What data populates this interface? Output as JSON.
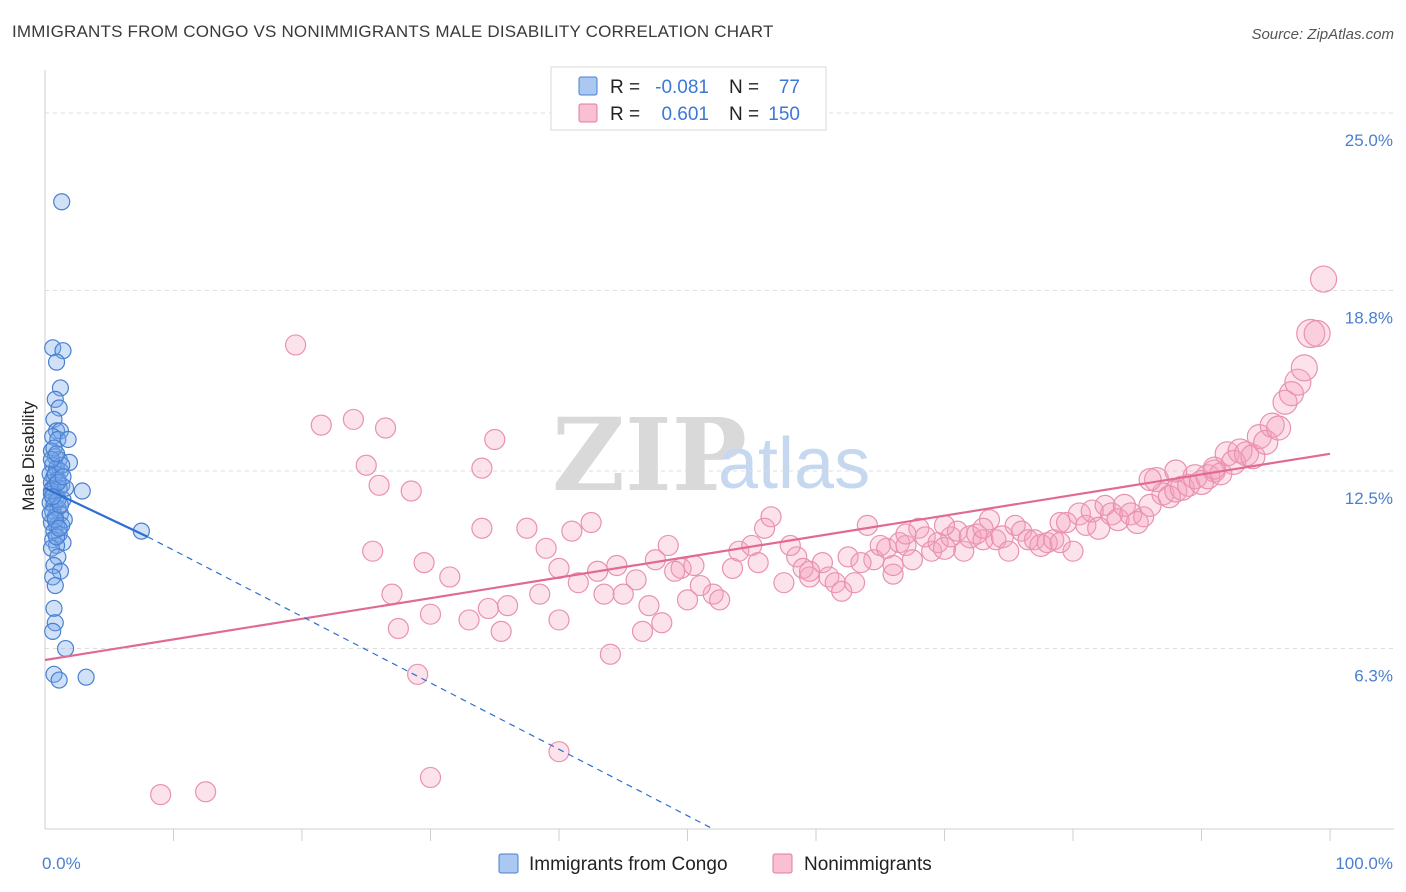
{
  "title": "IMMIGRANTS FROM CONGO VS NONIMMIGRANTS MALE DISABILITY CORRELATION CHART",
  "source": "Source: ZipAtlas.com",
  "watermark": {
    "zip": "ZIP",
    "atlas": "atlas"
  },
  "legend": {
    "r_label": "R =",
    "n_label": "N =",
    "rows": [
      {
        "r": "-0.081",
        "n": "77",
        "fill": "#aac8f0",
        "stroke": "#4a80d0"
      },
      {
        "r": "0.601",
        "n": "150",
        "fill": "#f8c0d2",
        "stroke": "#e07aa0"
      }
    ]
  },
  "bottom_legend": [
    "Immigrants from Congo",
    "Nonimmigrants"
  ],
  "colors": {
    "blue_fill": "rgba(120,170,235,0.35)",
    "blue_stroke": "#4a80d0",
    "blue_line": "#2f6fcf",
    "pink_fill": "rgba(245,160,190,0.30)",
    "pink_stroke": "#e892b0",
    "pink_line": "#e06a94",
    "grid": "#dcdcdc",
    "axis_text": "#4a7fd0"
  },
  "chart_data": {
    "type": "scatter",
    "title": "IMMIGRANTS FROM CONGO VS NONIMMIGRANTS MALE DISABILITY CORRELATION CHART",
    "xlabel": "",
    "ylabel": "Male Disability",
    "xlim": [
      0,
      100
    ],
    "ylim": [
      0,
      26.5
    ],
    "x_tick_labels": [
      {
        "value": 0,
        "label": "0.0%"
      },
      {
        "value": 100,
        "label": "100.0%"
      }
    ],
    "y_tick_labels": [
      {
        "value": 6.3,
        "label": "6.3%"
      },
      {
        "value": 12.5,
        "label": "12.5%"
      },
      {
        "value": 18.8,
        "label": "18.8%"
      },
      {
        "value": 25.0,
        "label": "25.0%"
      }
    ],
    "series": [
      {
        "name": "Immigrants from Congo",
        "r": -0.081,
        "n": 77,
        "trend": {
          "x0": 0,
          "y0": 11.9,
          "x1": 8,
          "y1": 10.2,
          "dash_x1": 52,
          "dash_y1": 0
        },
        "points": [
          [
            1.3,
            21.9,
            9
          ],
          [
            0.6,
            16.8,
            9
          ],
          [
            1.4,
            16.7,
            9
          ],
          [
            0.9,
            16.3,
            9
          ],
          [
            1.2,
            15.4,
            9
          ],
          [
            0.8,
            15.0,
            9
          ],
          [
            1.1,
            14.7,
            9
          ],
          [
            0.7,
            14.3,
            9
          ],
          [
            0.9,
            13.9,
            9
          ],
          [
            1.2,
            13.9,
            9
          ],
          [
            0.6,
            13.7,
            9
          ],
          [
            1.0,
            13.6,
            9
          ],
          [
            1.8,
            13.6,
            9
          ],
          [
            0.5,
            13.2,
            9
          ],
          [
            0.8,
            13.0,
            9
          ],
          [
            1.1,
            12.9,
            9
          ],
          [
            1.9,
            12.8,
            9
          ],
          [
            0.6,
            12.7,
            9
          ],
          [
            0.9,
            12.6,
            9
          ],
          [
            1.2,
            12.5,
            9
          ],
          [
            0.4,
            12.4,
            9
          ],
          [
            0.7,
            12.3,
            9
          ],
          [
            1.0,
            12.2,
            9
          ],
          [
            0.5,
            12.1,
            9
          ],
          [
            0.8,
            12.0,
            9
          ],
          [
            1.3,
            12.0,
            9
          ],
          [
            0.6,
            11.9,
            9
          ],
          [
            1.1,
            11.9,
            9
          ],
          [
            2.9,
            11.8,
            9
          ],
          [
            0.5,
            11.7,
            9
          ],
          [
            0.9,
            11.6,
            9
          ],
          [
            1.4,
            11.5,
            9
          ],
          [
            0.4,
            11.4,
            9
          ],
          [
            0.7,
            11.3,
            9
          ],
          [
            1.0,
            11.2,
            9
          ],
          [
            0.6,
            11.1,
            9
          ],
          [
            1.2,
            11.0,
            9
          ],
          [
            0.8,
            10.9,
            9
          ],
          [
            1.5,
            10.8,
            9
          ],
          [
            0.5,
            10.7,
            9
          ],
          [
            0.9,
            10.6,
            9
          ],
          [
            1.3,
            10.6,
            9
          ],
          [
            7.5,
            10.4,
            9
          ],
          [
            0.7,
            10.4,
            9
          ],
          [
            1.1,
            10.3,
            9
          ],
          [
            0.6,
            10.1,
            9
          ],
          [
            1.4,
            10.0,
            9
          ],
          [
            0.9,
            9.9,
            9
          ],
          [
            0.5,
            9.8,
            9
          ],
          [
            1.0,
            9.5,
            9
          ],
          [
            0.7,
            9.2,
            9
          ],
          [
            1.2,
            9.0,
            9
          ],
          [
            0.6,
            8.8,
            9
          ],
          [
            0.8,
            8.5,
            9
          ],
          [
            0.7,
            7.7,
            9
          ],
          [
            0.8,
            7.2,
            9
          ],
          [
            0.6,
            6.9,
            9
          ],
          [
            1.6,
            6.3,
            9
          ],
          [
            0.7,
            5.4,
            9
          ],
          [
            1.1,
            5.2,
            9
          ],
          [
            3.2,
            5.3,
            9
          ],
          [
            0.5,
            11.8,
            9
          ],
          [
            0.8,
            12.4,
            9
          ],
          [
            1.0,
            11.5,
            9
          ],
          [
            1.6,
            11.9,
            9
          ],
          [
            0.4,
            11.0,
            9
          ],
          [
            0.9,
            10.2,
            9
          ],
          [
            1.3,
            12.7,
            9
          ],
          [
            0.7,
            13.3,
            9
          ],
          [
            1.0,
            12.1,
            9
          ],
          [
            0.5,
            12.9,
            9
          ],
          [
            1.2,
            11.3,
            9
          ],
          [
            0.8,
            10.8,
            9
          ],
          [
            0.6,
            11.6,
            9
          ],
          [
            1.4,
            12.3,
            9
          ],
          [
            0.9,
            13.1,
            9
          ],
          [
            1.1,
            10.5,
            9
          ]
        ]
      },
      {
        "name": "Nonimmigrants",
        "r": 0.601,
        "n": 150,
        "trend": {
          "x0": 0,
          "y0": 5.9,
          "x1": 100,
          "y1": 13.1
        },
        "points": [
          [
            9.0,
            1.2,
            10
          ],
          [
            12.5,
            1.3,
            10
          ],
          [
            30.0,
            1.8,
            10
          ],
          [
            40.0,
            2.7,
            10
          ],
          [
            29.0,
            5.4,
            10
          ],
          [
            19.5,
            16.9,
            10
          ],
          [
            21.5,
            14.1,
            10
          ],
          [
            24.0,
            14.3,
            10
          ],
          [
            26.5,
            14.0,
            10
          ],
          [
            25.0,
            12.7,
            10
          ],
          [
            26.0,
            12.0,
            10
          ],
          [
            28.5,
            11.8,
            10
          ],
          [
            35.0,
            13.6,
            10
          ],
          [
            34.0,
            12.6,
            10
          ],
          [
            25.5,
            9.7,
            10
          ],
          [
            27.0,
            8.2,
            10
          ],
          [
            29.5,
            9.3,
            10
          ],
          [
            31.5,
            8.8,
            10
          ],
          [
            30.0,
            7.5,
            10
          ],
          [
            27.5,
            7.0,
            10
          ],
          [
            33.0,
            7.3,
            10
          ],
          [
            34.5,
            7.7,
            10
          ],
          [
            36.0,
            7.8,
            10
          ],
          [
            35.5,
            6.9,
            10
          ],
          [
            34.0,
            10.5,
            10
          ],
          [
            37.5,
            10.5,
            10
          ],
          [
            39.0,
            9.8,
            10
          ],
          [
            41.0,
            10.4,
            10
          ],
          [
            42.5,
            10.7,
            10
          ],
          [
            40.0,
            9.1,
            10
          ],
          [
            41.5,
            8.6,
            10
          ],
          [
            43.0,
            9.0,
            10
          ],
          [
            44.5,
            9.2,
            10
          ],
          [
            46.0,
            8.7,
            10
          ],
          [
            43.5,
            8.2,
            10
          ],
          [
            45.0,
            8.2,
            10
          ],
          [
            47.0,
            7.8,
            10
          ],
          [
            46.5,
            6.9,
            10
          ],
          [
            48.0,
            7.2,
            10
          ],
          [
            40.0,
            7.3,
            10
          ],
          [
            44.0,
            6.1,
            10
          ],
          [
            38.5,
            8.2,
            10
          ],
          [
            48.5,
            9.9,
            10
          ],
          [
            49.5,
            9.1,
            10
          ],
          [
            50.5,
            9.2,
            10
          ],
          [
            52.0,
            8.2,
            10
          ],
          [
            52.5,
            8.0,
            10
          ],
          [
            53.5,
            9.1,
            10
          ],
          [
            54.0,
            9.7,
            10
          ],
          [
            55.0,
            9.9,
            10
          ],
          [
            56.0,
            10.5,
            10
          ],
          [
            56.5,
            10.9,
            10
          ],
          [
            57.5,
            8.6,
            10
          ],
          [
            58.5,
            9.5,
            10
          ],
          [
            59.0,
            9.1,
            10
          ],
          [
            59.5,
            8.8,
            10
          ],
          [
            60.5,
            9.3,
            10
          ],
          [
            61.0,
            8.8,
            10
          ],
          [
            61.5,
            8.6,
            10
          ],
          [
            62.0,
            8.3,
            10
          ],
          [
            62.5,
            9.5,
            10
          ],
          [
            63.0,
            8.6,
            10
          ],
          [
            64.0,
            10.6,
            10
          ],
          [
            64.5,
            9.4,
            10
          ],
          [
            65.0,
            9.9,
            10
          ],
          [
            65.5,
            9.8,
            10
          ],
          [
            66.0,
            8.9,
            10
          ],
          [
            66.5,
            10.0,
            10
          ],
          [
            67.0,
            9.9,
            10
          ],
          [
            67.5,
            9.4,
            10
          ],
          [
            68.0,
            10.5,
            10
          ],
          [
            68.5,
            10.2,
            10
          ],
          [
            69.0,
            9.7,
            10
          ],
          [
            69.5,
            10.0,
            10
          ],
          [
            70.0,
            9.8,
            11
          ],
          [
            70.5,
            10.2,
            10
          ],
          [
            71.0,
            10.4,
            10
          ],
          [
            71.5,
            9.7,
            10
          ],
          [
            72.0,
            10.2,
            11
          ],
          [
            72.5,
            10.3,
            10
          ],
          [
            73.0,
            10.1,
            10
          ],
          [
            73.5,
            10.8,
            10
          ],
          [
            74.0,
            10.1,
            10
          ],
          [
            74.5,
            10.2,
            11
          ],
          [
            75.0,
            9.7,
            10
          ],
          [
            75.5,
            10.6,
            10
          ],
          [
            76.0,
            10.4,
            10
          ],
          [
            76.5,
            10.1,
            10
          ],
          [
            77.0,
            10.1,
            10
          ],
          [
            77.5,
            9.9,
            11
          ],
          [
            78.0,
            10.0,
            10
          ],
          [
            78.5,
            10.1,
            10
          ],
          [
            79.0,
            10.7,
            10
          ],
          [
            79.5,
            10.7,
            10
          ],
          [
            80.0,
            9.7,
            10
          ],
          [
            80.5,
            11.0,
            11
          ],
          [
            81.0,
            10.6,
            10
          ],
          [
            81.5,
            11.1,
            11
          ],
          [
            82.0,
            10.5,
            11
          ],
          [
            82.5,
            11.3,
            10
          ],
          [
            83.0,
            11.0,
            11
          ],
          [
            83.5,
            10.8,
            11
          ],
          [
            84.0,
            11.3,
            11
          ],
          [
            84.5,
            11.0,
            11
          ],
          [
            85.0,
            10.7,
            11
          ],
          [
            85.5,
            10.9,
            10
          ],
          [
            86.0,
            11.3,
            11
          ],
          [
            86.5,
            12.2,
            12
          ],
          [
            87.0,
            11.7,
            11
          ],
          [
            87.5,
            11.6,
            11
          ],
          [
            88.0,
            11.8,
            11
          ],
          [
            88.5,
            11.9,
            12
          ],
          [
            89.0,
            12.0,
            11
          ],
          [
            89.5,
            12.3,
            12
          ],
          [
            90.0,
            12.1,
            12
          ],
          [
            90.5,
            12.3,
            12
          ],
          [
            91.0,
            12.5,
            11
          ],
          [
            91.5,
            12.4,
            11
          ],
          [
            92.0,
            13.1,
            12
          ],
          [
            92.5,
            12.8,
            12
          ],
          [
            93.0,
            13.2,
            12
          ],
          [
            93.5,
            13.1,
            12
          ],
          [
            94.0,
            13.0,
            12
          ],
          [
            94.5,
            13.7,
            12
          ],
          [
            95.0,
            13.5,
            12
          ],
          [
            95.5,
            14.1,
            12
          ],
          [
            96.0,
            14.0,
            12
          ],
          [
            96.5,
            14.9,
            12
          ],
          [
            97.0,
            15.2,
            12
          ],
          [
            97.5,
            15.6,
            13
          ],
          [
            98.0,
            16.1,
            13
          ],
          [
            98.5,
            17.3,
            14
          ],
          [
            99.0,
            17.3,
            13
          ],
          [
            99.5,
            19.2,
            13
          ],
          [
            59.5,
            9.0,
            10
          ],
          [
            63.5,
            9.3,
            10
          ],
          [
            70.0,
            10.6,
            10
          ],
          [
            86.0,
            12.2,
            11
          ],
          [
            66.0,
            9.2,
            10
          ],
          [
            73.0,
            10.5,
            10
          ],
          [
            79.0,
            10.0,
            10
          ],
          [
            88.0,
            12.5,
            11
          ],
          [
            91.0,
            12.6,
            11
          ],
          [
            67.0,
            10.3,
            10
          ],
          [
            58.0,
            9.9,
            10
          ],
          [
            55.5,
            9.3,
            10
          ],
          [
            51.0,
            8.5,
            10
          ],
          [
            50.0,
            8.0,
            10
          ],
          [
            49.0,
            9.0,
            10
          ],
          [
            47.5,
            9.4,
            10
          ]
        ]
      }
    ]
  }
}
